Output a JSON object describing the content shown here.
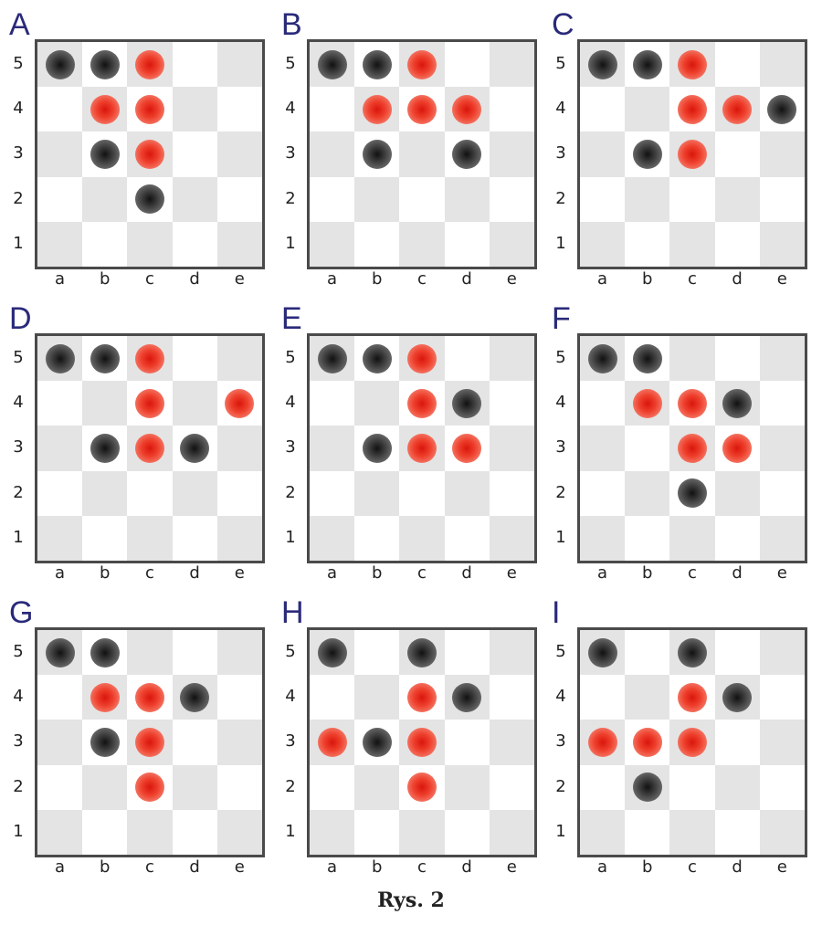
{
  "caption": "Rys. 2",
  "files": [
    "a",
    "b",
    "c",
    "d",
    "e"
  ],
  "ranks": [
    "5",
    "4",
    "3",
    "2",
    "1"
  ],
  "colors": {
    "black_piece": "#333333",
    "red_piece": "#e8321f",
    "shaded_square": "#e4e4e4",
    "light_square": "#ffffff",
    "label_color": "#2a2a7a"
  },
  "diagrams": [
    {
      "label": "A",
      "pieces": [
        {
          "sq": "a5",
          "color": "black"
        },
        {
          "sq": "b5",
          "color": "black"
        },
        {
          "sq": "c5",
          "color": "red"
        },
        {
          "sq": "b4",
          "color": "red"
        },
        {
          "sq": "c4",
          "color": "red"
        },
        {
          "sq": "b3",
          "color": "black"
        },
        {
          "sq": "c3",
          "color": "red"
        },
        {
          "sq": "c2",
          "color": "black"
        }
      ]
    },
    {
      "label": "B",
      "pieces": [
        {
          "sq": "a5",
          "color": "black"
        },
        {
          "sq": "b5",
          "color": "black"
        },
        {
          "sq": "c5",
          "color": "red"
        },
        {
          "sq": "b4",
          "color": "red"
        },
        {
          "sq": "c4",
          "color": "red"
        },
        {
          "sq": "d4",
          "color": "red"
        },
        {
          "sq": "b3",
          "color": "black"
        },
        {
          "sq": "d3",
          "color": "black"
        }
      ]
    },
    {
      "label": "C",
      "pieces": [
        {
          "sq": "a5",
          "color": "black"
        },
        {
          "sq": "b5",
          "color": "black"
        },
        {
          "sq": "c5",
          "color": "red"
        },
        {
          "sq": "c4",
          "color": "red"
        },
        {
          "sq": "d4",
          "color": "red"
        },
        {
          "sq": "e4",
          "color": "black"
        },
        {
          "sq": "b3",
          "color": "black"
        },
        {
          "sq": "c3",
          "color": "red"
        }
      ]
    },
    {
      "label": "D",
      "pieces": [
        {
          "sq": "a5",
          "color": "black"
        },
        {
          "sq": "b5",
          "color": "black"
        },
        {
          "sq": "c5",
          "color": "red"
        },
        {
          "sq": "c4",
          "color": "red"
        },
        {
          "sq": "e4",
          "color": "red"
        },
        {
          "sq": "b3",
          "color": "black"
        },
        {
          "sq": "c3",
          "color": "red"
        },
        {
          "sq": "d3",
          "color": "black"
        }
      ]
    },
    {
      "label": "E",
      "pieces": [
        {
          "sq": "a5",
          "color": "black"
        },
        {
          "sq": "b5",
          "color": "black"
        },
        {
          "sq": "c5",
          "color": "red"
        },
        {
          "sq": "c4",
          "color": "red"
        },
        {
          "sq": "d4",
          "color": "black"
        },
        {
          "sq": "b3",
          "color": "black"
        },
        {
          "sq": "c3",
          "color": "red"
        },
        {
          "sq": "d3",
          "color": "red"
        }
      ]
    },
    {
      "label": "F",
      "pieces": [
        {
          "sq": "a5",
          "color": "black"
        },
        {
          "sq": "b5",
          "color": "black"
        },
        {
          "sq": "b4",
          "color": "red"
        },
        {
          "sq": "c4",
          "color": "red"
        },
        {
          "sq": "d4",
          "color": "black"
        },
        {
          "sq": "c3",
          "color": "red"
        },
        {
          "sq": "d3",
          "color": "red"
        },
        {
          "sq": "c2",
          "color": "black"
        }
      ]
    },
    {
      "label": "G",
      "pieces": [
        {
          "sq": "a5",
          "color": "black"
        },
        {
          "sq": "b5",
          "color": "black"
        },
        {
          "sq": "b4",
          "color": "red"
        },
        {
          "sq": "c4",
          "color": "red"
        },
        {
          "sq": "d4",
          "color": "black"
        },
        {
          "sq": "b3",
          "color": "black"
        },
        {
          "sq": "c3",
          "color": "red"
        },
        {
          "sq": "c2",
          "color": "red"
        }
      ]
    },
    {
      "label": "H",
      "pieces": [
        {
          "sq": "a5",
          "color": "black"
        },
        {
          "sq": "c5",
          "color": "black"
        },
        {
          "sq": "c4",
          "color": "red"
        },
        {
          "sq": "d4",
          "color": "black"
        },
        {
          "sq": "a3",
          "color": "red"
        },
        {
          "sq": "b3",
          "color": "black"
        },
        {
          "sq": "c3",
          "color": "red"
        },
        {
          "sq": "c2",
          "color": "red"
        }
      ]
    },
    {
      "label": "I",
      "pieces": [
        {
          "sq": "a5",
          "color": "black"
        },
        {
          "sq": "c5",
          "color": "black"
        },
        {
          "sq": "c4",
          "color": "red"
        },
        {
          "sq": "d4",
          "color": "black"
        },
        {
          "sq": "a3",
          "color": "red"
        },
        {
          "sq": "b3",
          "color": "red"
        },
        {
          "sq": "c3",
          "color": "red"
        },
        {
          "sq": "b2",
          "color": "black"
        }
      ]
    }
  ]
}
